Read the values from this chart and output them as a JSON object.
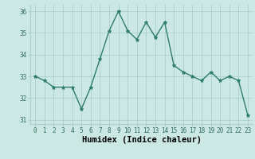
{
  "x": [
    0,
    1,
    2,
    3,
    4,
    5,
    6,
    7,
    8,
    9,
    10,
    11,
    12,
    13,
    14,
    15,
    16,
    17,
    18,
    19,
    20,
    21,
    22,
    23
  ],
  "y": [
    33.0,
    32.8,
    32.5,
    32.5,
    32.5,
    31.5,
    32.5,
    33.8,
    35.1,
    36.0,
    35.1,
    34.7,
    35.5,
    34.8,
    35.5,
    33.5,
    33.2,
    33.0,
    32.8,
    33.2,
    32.8,
    33.0,
    32.8,
    31.2
  ],
  "line_color": "#2e7d6e",
  "marker": "*",
  "background_color": "#cce8e4",
  "grid_color": "#aacfca",
  "xlabel": "Humidex (Indice chaleur)",
  "xlim": [
    -0.5,
    23.5
  ],
  "ylim": [
    30.8,
    36.3
  ],
  "yticks": [
    31,
    32,
    33,
    34,
    35,
    36
  ],
  "xticks": [
    0,
    1,
    2,
    3,
    4,
    5,
    6,
    7,
    8,
    9,
    10,
    11,
    12,
    13,
    14,
    15,
    16,
    17,
    18,
    19,
    20,
    21,
    22,
    23
  ],
  "xtick_labels": [
    "0",
    "1",
    "2",
    "3",
    "4",
    "5",
    "6",
    "7",
    "8",
    "9",
    "10",
    "11",
    "12",
    "13",
    "14",
    "15",
    "16",
    "17",
    "18",
    "19",
    "20",
    "21",
    "22",
    "23"
  ],
  "tick_fontsize": 5.5,
  "label_fontsize": 7.5,
  "linewidth": 1.0,
  "markersize": 3.5
}
